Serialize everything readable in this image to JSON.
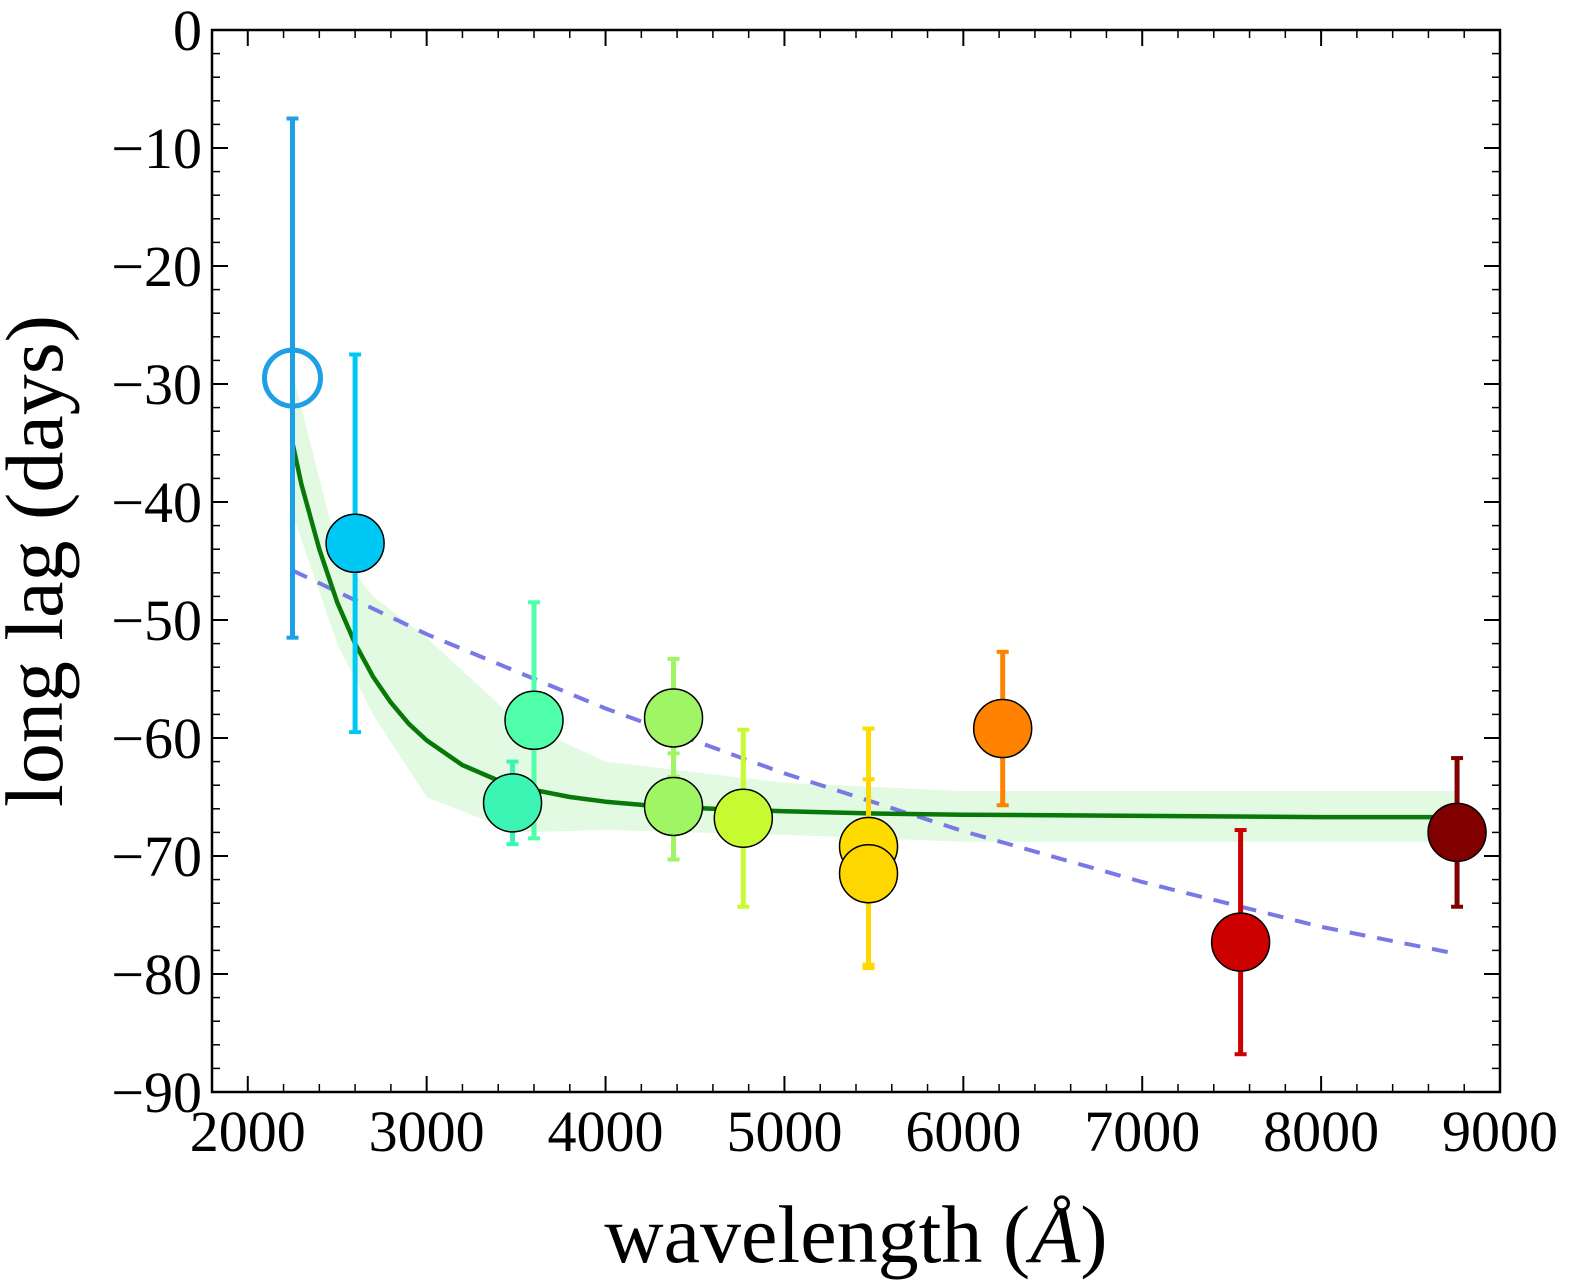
{
  "chart_data": {
    "type": "scatter",
    "xlabel_text": "wavelength (",
    "xlabel_unit": "Å",
    "xlabel_close": ")",
    "ylabel": "long lag (days)",
    "xlim": [
      1800,
      9000
    ],
    "ylim": [
      -90,
      0
    ],
    "x_ticks": [
      2000,
      3000,
      4000,
      5000,
      6000,
      7000,
      8000,
      9000
    ],
    "x_tick_labels": [
      "2000",
      "3000",
      "4000",
      "5000",
      "6000",
      "7000",
      "8000",
      "9000"
    ],
    "y_ticks": [
      0,
      -10,
      -20,
      -30,
      -40,
      -50,
      -60,
      -70,
      -80,
      -90
    ],
    "y_tick_labels": [
      "0",
      "−10",
      "−20",
      "−30",
      "−40",
      "−50",
      "−60",
      "−70",
      "−80",
      "−90"
    ],
    "grid": false,
    "points": [
      {
        "x": 2250,
        "y": -29.5,
        "err_low": 22.0,
        "err_high": 22.0,
        "color": "#1ea0e6",
        "filled": false
      },
      {
        "x": 2600,
        "y": -43.5,
        "err_low": 16.0,
        "err_high": 16.0,
        "color": "#00c8f5",
        "filled": true
      },
      {
        "x": 3480,
        "y": -65.5,
        "err_low": 3.5,
        "err_high": 3.5,
        "color": "#3cf5b4",
        "filled": true
      },
      {
        "x": 3600,
        "y": -58.5,
        "err_low": 10.0,
        "err_high": 10.0,
        "color": "#50ffaa",
        "filled": true
      },
      {
        "x": 4380,
        "y": -58.3,
        "err_low": 5.0,
        "err_high": 5.0,
        "color": "#a0f564",
        "filled": true
      },
      {
        "x": 4380,
        "y": -65.8,
        "err_low": 4.5,
        "err_high": 4.5,
        "color": "#a0f564",
        "filled": true
      },
      {
        "x": 4770,
        "y": -66.8,
        "err_low": 7.5,
        "err_high": 7.5,
        "color": "#c8fa32",
        "filled": true
      },
      {
        "x": 5470,
        "y": -69.2,
        "err_low": 10.0,
        "err_high": 10.0,
        "color": "#ffdc00",
        "filled": true
      },
      {
        "x": 5470,
        "y": -71.5,
        "err_low": 8.0,
        "err_high": 8.0,
        "color": "#ffd700",
        "filled": true
      },
      {
        "x": 6220,
        "y": -59.2,
        "err_low": 6.5,
        "err_high": 6.5,
        "color": "#ff8200",
        "filled": true
      },
      {
        "x": 7550,
        "y": -77.3,
        "err_low": 9.5,
        "err_high": 9.5,
        "color": "#cd0000",
        "filled": true
      },
      {
        "x": 8760,
        "y": -68.0,
        "err_low": 6.3,
        "err_high": 6.3,
        "color": "#800000",
        "filled": true
      }
    ],
    "fit_curve": {
      "name": "fit",
      "color": "#087808",
      "x": [
        2250,
        2300,
        2400,
        2500,
        2600,
        2700,
        2800,
        2900,
        3000,
        3200,
        3400,
        3600,
        3800,
        4000,
        4300,
        4600,
        5000,
        5500,
        6000,
        7000,
        8000,
        8760
      ],
      "y": [
        -35.0,
        -38.5,
        -44.0,
        -48.5,
        -52.0,
        -54.8,
        -57.0,
        -58.8,
        -60.2,
        -62.3,
        -63.6,
        -64.4,
        -65.0,
        -65.4,
        -65.8,
        -66.0,
        -66.2,
        -66.4,
        -66.5,
        -66.6,
        -66.7,
        -66.7
      ]
    },
    "fit_band": {
      "color": "#c8f5c8",
      "x": [
        2250,
        2500,
        2700,
        3000,
        3500,
        4000,
        5000,
        6000,
        7000,
        8000,
        8760
      ],
      "upper": [
        -29.0,
        -44.0,
        -48.0,
        -51.5,
        -58.5,
        -62.0,
        -63.8,
        -64.5,
        -64.5,
        -64.5,
        -64.5
      ],
      "lower": [
        -41.0,
        -52.0,
        -58.0,
        -65.0,
        -68.0,
        -67.8,
        -68.2,
        -68.8,
        -68.8,
        -68.8,
        -68.8
      ]
    },
    "power_law": {
      "name": "dashed",
      "color": "#7878e6",
      "x": [
        2250,
        3000,
        4000,
        5000,
        6000,
        7000,
        8000,
        8760
      ],
      "y": [
        -45.8,
        -51.2,
        -57.5,
        -63.0,
        -67.9,
        -72.2,
        -76.0,
        -78.3
      ]
    }
  }
}
